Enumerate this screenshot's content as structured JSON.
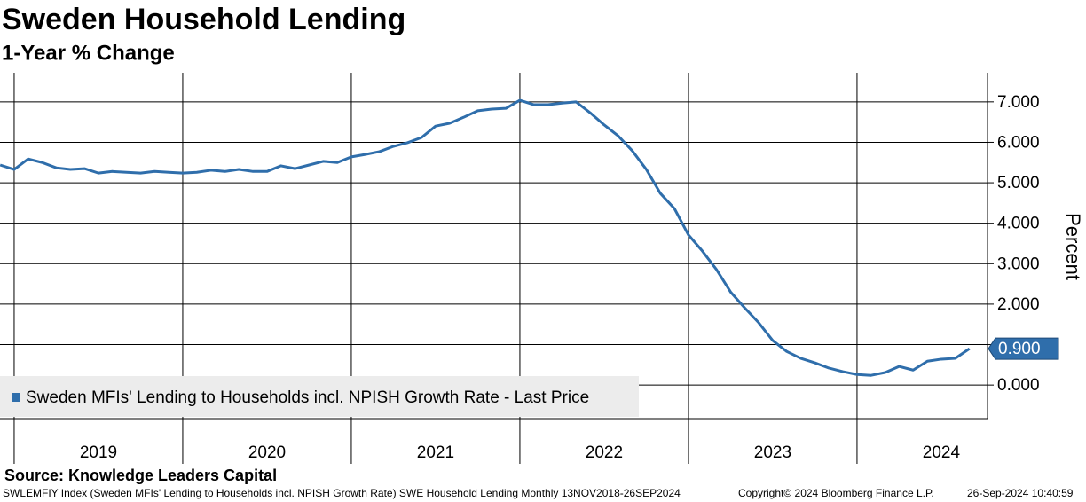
{
  "chart_data": {
    "type": "line",
    "title": "Sweden Household Lending",
    "subtitle": "1-Year % Change",
    "y_label": "Percent",
    "source": "Source: Knowledge Leaders Capital",
    "footer": [
      "SWLEMFIY Index (Sweden MFIs' Lending to Households incl. NPISH Growth Rate) SWE Household Lending  Monthly 13NOV2018-26SEP2024",
      "Copyright© 2024 Bloomberg Finance L.P.",
      "26-Sep-2024 10:40:59"
    ],
    "xlim": [
      2018.916,
      2024.774
    ],
    "xticks": [
      {
        "value": 2019,
        "label": "2019"
      },
      {
        "value": 2020,
        "label": "2020"
      },
      {
        "value": 2021,
        "label": "2021"
      },
      {
        "value": 2022,
        "label": "2022"
      },
      {
        "value": 2023,
        "label": "2023"
      },
      {
        "value": 2024,
        "label": "2024"
      }
    ],
    "ylim": [
      -0.83,
      7.72
    ],
    "yticks": [
      {
        "value": 0,
        "label": "0.000"
      },
      {
        "value": 1,
        "label": "1.000"
      },
      {
        "value": 2,
        "label": "2.000"
      },
      {
        "value": 3,
        "label": "3.000"
      },
      {
        "value": 4,
        "label": "4.000"
      },
      {
        "value": 5,
        "label": "5.000"
      },
      {
        "value": 6,
        "label": "6.000"
      },
      {
        "value": 7,
        "label": "7.000"
      }
    ],
    "grid": true,
    "legend": "bottom-left",
    "annotations": [
      {
        "value": 0.9,
        "label": "0.900"
      }
    ],
    "series": [
      {
        "name": "Sweden MFIs' Lending to Households incl. NPISH Growth Rate - Last Price",
        "color": "#2f6eab",
        "x": [
          2018.917,
          2019.0,
          2019.083,
          2019.167,
          2019.25,
          2019.333,
          2019.417,
          2019.5,
          2019.583,
          2019.667,
          2019.75,
          2019.833,
          2019.917,
          2020.0,
          2020.083,
          2020.167,
          2020.25,
          2020.333,
          2020.417,
          2020.5,
          2020.583,
          2020.667,
          2020.75,
          2020.833,
          2020.917,
          2021.0,
          2021.083,
          2021.167,
          2021.25,
          2021.333,
          2021.417,
          2021.5,
          2021.583,
          2021.667,
          2021.75,
          2021.833,
          2021.917,
          2022.0,
          2022.083,
          2022.167,
          2022.25,
          2022.333,
          2022.417,
          2022.5,
          2022.583,
          2022.667,
          2022.75,
          2022.833,
          2022.917,
          2023.0,
          2023.083,
          2023.167,
          2023.25,
          2023.333,
          2023.417,
          2023.5,
          2023.583,
          2023.667,
          2023.75,
          2023.833,
          2023.917,
          2024.0,
          2024.083,
          2024.167,
          2024.25,
          2024.333,
          2024.417,
          2024.5,
          2024.583,
          2024.667
        ],
        "values": [
          5.44,
          5.33,
          5.59,
          5.5,
          5.37,
          5.33,
          5.35,
          5.24,
          5.28,
          5.26,
          5.24,
          5.28,
          5.26,
          5.24,
          5.26,
          5.31,
          5.28,
          5.33,
          5.28,
          5.28,
          5.42,
          5.35,
          5.44,
          5.53,
          5.5,
          5.64,
          5.7,
          5.77,
          5.9,
          5.99,
          6.12,
          6.4,
          6.47,
          6.62,
          6.78,
          6.82,
          6.84,
          7.04,
          6.93,
          6.93,
          6.97,
          7.0,
          6.73,
          6.43,
          6.16,
          5.79,
          5.33,
          4.74,
          4.36,
          3.71,
          3.31,
          2.85,
          2.3,
          1.91,
          1.54,
          1.1,
          0.83,
          0.66,
          0.55,
          0.42,
          0.33,
          0.26,
          0.24,
          0.31,
          0.46,
          0.37,
          0.59,
          0.64,
          0.66,
          0.9
        ]
      }
    ]
  }
}
